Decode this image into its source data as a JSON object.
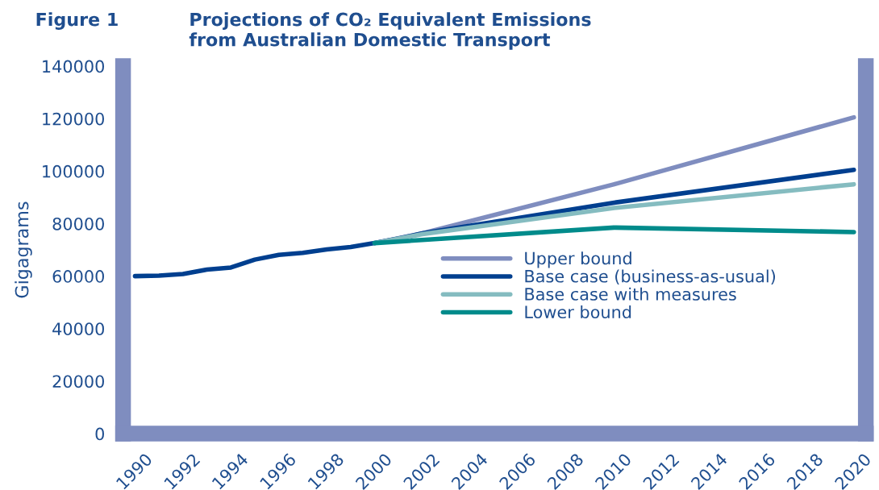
{
  "chart_data": {
    "type": "line",
    "title": "Projections of CO₂ Equivalent Emissions\nfrom Australian Domestic Transport",
    "ylabel": "Gigagrams",
    "annotations": [
      "Figure 1"
    ],
    "series": [
      {
        "name": "Upper bound",
        "color": "#7f8dbf",
        "x": [
          2000,
          2002,
          2010,
          2020
        ],
        "values": [
          72600,
          76300,
          95000,
          120500
        ]
      },
      {
        "name": "Base case (business-as-usual)",
        "color": "#003f8f",
        "x": [
          1990,
          1991,
          1992,
          1993,
          1994,
          1995,
          1996,
          1997,
          1998,
          1999,
          2000,
          2001,
          2002,
          2010,
          2020
        ],
        "values": [
          60000,
          60200,
          60800,
          62500,
          63300,
          66300,
          68100,
          68900,
          70200,
          71100,
          72600,
          74300,
          76300,
          88000,
          100500
        ]
      },
      {
        "name": "Base case with measures",
        "color": "#85bcc0",
        "x": [
          2000,
          2002,
          2010,
          2020
        ],
        "values": [
          72600,
          76000,
          86000,
          95000
        ]
      },
      {
        "name": "Lower bound",
        "color": "#008b8b",
        "x": [
          2000,
          2010,
          2020
        ],
        "values": [
          72600,
          78500,
          76800
        ]
      }
    ],
    "xlim": [
      1989.5,
      2020.5
    ],
    "xticks": [
      1990,
      1992,
      1994,
      1996,
      1998,
      2000,
      2002,
      2004,
      2006,
      2008,
      2010,
      2012,
      2014,
      2016,
      2018,
      2020
    ],
    "ylim": [
      0,
      140000
    ],
    "yticks": [
      0,
      20000,
      40000,
      60000,
      80000,
      100000,
      120000,
      140000
    ],
    "grid": false,
    "legend": "center right",
    "marker": "none",
    "line_style": "solid"
  }
}
